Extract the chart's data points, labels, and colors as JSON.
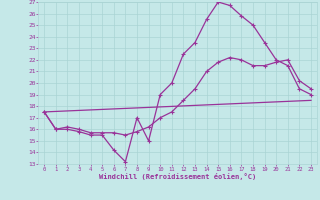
{
  "xlabel": "Windchill (Refroidissement éolien,°C)",
  "xlim": [
    -0.5,
    23.5
  ],
  "ylim": [
    13,
    27
  ],
  "yticks": [
    13,
    14,
    15,
    16,
    17,
    18,
    19,
    20,
    21,
    22,
    23,
    24,
    25,
    26,
    27
  ],
  "xticks": [
    0,
    1,
    2,
    3,
    4,
    5,
    6,
    7,
    8,
    9,
    10,
    11,
    12,
    13,
    14,
    15,
    16,
    17,
    18,
    19,
    20,
    21,
    22,
    23
  ],
  "bg_color": "#c5e8e8",
  "line_color": "#993399",
  "grid_color": "#aad4d4",
  "line1_x": [
    0,
    1,
    2,
    3,
    4,
    5,
    6,
    7,
    8,
    9,
    10,
    11,
    12,
    13,
    14,
    15,
    16,
    17,
    18,
    19,
    20,
    21,
    22,
    23
  ],
  "line1_y": [
    17.5,
    16.0,
    16.2,
    16.0,
    15.7,
    15.7,
    15.7,
    15.5,
    15.8,
    16.2,
    17.0,
    17.5,
    18.5,
    19.5,
    21.0,
    21.8,
    22.2,
    22.0,
    21.5,
    21.5,
    21.8,
    22.0,
    20.2,
    19.5
  ],
  "line2_x": [
    0,
    1,
    2,
    3,
    4,
    5,
    6,
    7,
    8,
    9,
    10,
    11,
    12,
    13,
    14,
    15,
    16,
    17,
    18,
    19,
    20,
    21,
    22,
    23
  ],
  "line2_y": [
    17.5,
    16.0,
    16.0,
    15.8,
    15.5,
    15.5,
    14.2,
    13.2,
    17.0,
    15.0,
    19.0,
    20.0,
    22.5,
    23.5,
    25.5,
    27.0,
    26.7,
    25.8,
    25.0,
    23.5,
    22.0,
    21.5,
    19.5,
    19.0
  ],
  "line3_x": [
    0,
    23
  ],
  "line3_y": [
    17.5,
    18.5
  ]
}
